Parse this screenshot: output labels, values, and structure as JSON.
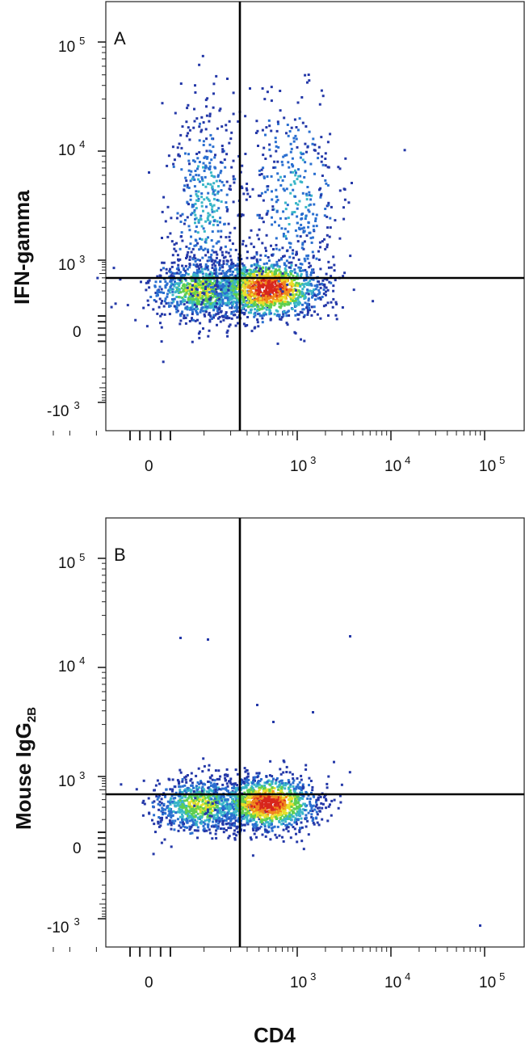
{
  "figure": {
    "xlabel": "CD4",
    "panels": [
      {
        "letter": "A",
        "ylabel_main": "IFN-gamma",
        "ylabel_sub": ""
      },
      {
        "letter": "B",
        "ylabel_main": "Mouse IgG",
        "ylabel_sub": "2B"
      }
    ],
    "x_tick_labels": [
      {
        "base": "0",
        "exp": ""
      },
      {
        "base": "10",
        "exp": "3"
      },
      {
        "base": "10",
        "exp": "4"
      },
      {
        "base": "10",
        "exp": "5"
      }
    ],
    "y_tick_labels": [
      {
        "base": "10",
        "exp": "5"
      },
      {
        "base": "10",
        "exp": "4"
      },
      {
        "base": "10",
        "exp": "3"
      },
      {
        "base": "0",
        "exp": ""
      },
      {
        "base": "-10",
        "exp": "3"
      }
    ]
  },
  "chart_data": [
    {
      "type": "scatter",
      "title": "",
      "panel": "A",
      "xlabel": "CD4",
      "ylabel": "IFN-gamma",
      "x_scale": "logicle (biexponential)",
      "y_scale": "logicle (biexponential)",
      "x_ticks": [
        "0",
        "10^3",
        "10^4",
        "10^5"
      ],
      "y_ticks": [
        "10^5",
        "10^4",
        "10^3",
        "0",
        "-10^3"
      ],
      "xlim": [
        -300,
        200000
      ],
      "ylim": [
        -2000,
        200000
      ],
      "quadrant_gate": {
        "x": 200,
        "y": 600
      },
      "color_scale": [
        "#2438a8",
        "#2a6fd0",
        "#39b6c8",
        "#5fcf4f",
        "#e8df2a",
        "#f08a1c",
        "#d8261c"
      ],
      "populations": [
        {
          "name": "CD4- IFN-gamma-",
          "x_center": 90,
          "y_center": 220,
          "density": "medium"
        },
        {
          "name": "CD4+ IFN-gamma-",
          "x_center": 480,
          "y_center": 240,
          "density": "high"
        },
        {
          "name": "CD4- IFN-gamma+",
          "x_center": 100,
          "y_center": 3500,
          "density": "low"
        },
        {
          "name": "CD4+ IFN-gamma+",
          "x_center": 900,
          "y_center": 4000,
          "density": "low"
        }
      ]
    },
    {
      "type": "scatter",
      "title": "",
      "panel": "B",
      "xlabel": "CD4",
      "ylabel": "Mouse IgG2B",
      "x_scale": "logicle (biexponential)",
      "y_scale": "logicle (biexponential)",
      "x_ticks": [
        "0",
        "10^3",
        "10^4",
        "10^5"
      ],
      "y_ticks": [
        "10^5",
        "10^4",
        "10^3",
        "0",
        "-10^3"
      ],
      "xlim": [
        -300,
        200000
      ],
      "ylim": [
        -2000,
        200000
      ],
      "quadrant_gate": {
        "x": 200,
        "y": 600
      },
      "color_scale": [
        "#2438a8",
        "#2a6fd0",
        "#39b6c8",
        "#5fcf4f",
        "#e8df2a",
        "#f08a1c",
        "#d8261c"
      ],
      "populations": [
        {
          "name": "CD4- IgG2B-",
          "x_center": 90,
          "y_center": 240,
          "density": "medium"
        },
        {
          "name": "CD4+ IgG2B-",
          "x_center": 480,
          "y_center": 260,
          "density": "high"
        }
      ]
    }
  ]
}
